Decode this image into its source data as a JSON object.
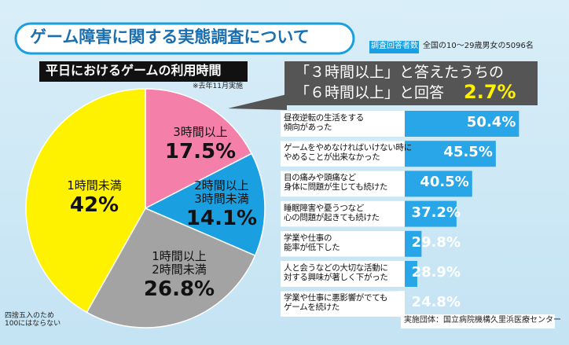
{
  "header": {
    "title": "ゲーム障害に関する実態調査について",
    "respondents_label": "調査回答者数",
    "respondents": "全国の10～29歳男女の5096名"
  },
  "pie_header": {
    "title": "平日におけるゲームの利用時間",
    "note": "※去年11月実施"
  },
  "callout": {
    "line1": "「３時間以上」と答えたうちの",
    "line2": "「６時間以上」と回答",
    "value": "2.7%"
  },
  "footnote": "四捨五入のため\n100にはならない",
  "source": "実施団体：国立病院機構久里浜医療センター",
  "chart_data": [
    {
      "type": "pie",
      "categories": [
        "3時間以上",
        "2時間以上\n3時間未満",
        "1時間以上\n2時間未満",
        "1時間未満"
      ],
      "values": [
        17.5,
        14.1,
        26.8,
        42
      ],
      "value_labels": [
        "17.5%",
        "14.1%",
        "26.8%",
        "42%"
      ],
      "colors": [
        "#f47fa8",
        "#1a9fe0",
        "#a3a3a3",
        "#fff200"
      ]
    },
    {
      "type": "hbar",
      "categories": [
        "昼夜逆転の生活をする\n傾向があった",
        "ゲームをやめなければいけない時に\nやめることが出来なかった",
        "目の痛みや頭痛など\n身体に問題が生じても続けた",
        "睡眠障害や憂うつなど\n心の問題が起きても続けた",
        "学業や仕事の\n能率が低下した",
        "人と会うなどの大切な活動に\n対する興味が著しく下がった",
        "学業や仕事に悪影響がでても\nゲームを続けた"
      ],
      "values": [
        50.4,
        45.5,
        40.5,
        37.2,
        29.8,
        28.9,
        24.8
      ],
      "value_labels": [
        "50.4%",
        "45.5%",
        "40.5%",
        "37.2%",
        "29.8%",
        "28.9%",
        "24.8%"
      ],
      "color": "#29a6e8",
      "xlim": [
        0,
        52
      ]
    }
  ]
}
